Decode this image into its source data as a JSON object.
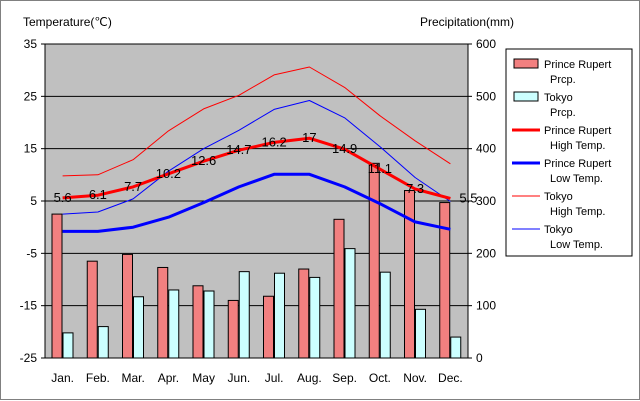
{
  "chart_data": {
    "type": "bar+line",
    "months": [
      "Jan.",
      "Feb.",
      "Mar.",
      "Apr.",
      "May",
      "Jun.",
      "Jul.",
      "Aug.",
      "Sep.",
      "Oct.",
      "Nov.",
      "Dec."
    ],
    "left_axis": {
      "title": "Temperature(℃)",
      "range": [
        -25,
        35
      ],
      "ticks": [
        "35",
        "25",
        "15",
        "5",
        "-5",
        "-15",
        "-25"
      ]
    },
    "right_axis": {
      "title": "Precipitation(mm)",
      "range": [
        0,
        600
      ],
      "ticks": [
        "600",
        "500",
        "400",
        "300",
        "200",
        "100",
        "0"
      ]
    },
    "precip_series": [
      {
        "name": "Prince Rupert Prcp.",
        "legend": [
          "Prince Rupert",
          "Prcp."
        ],
        "color": "#f28080",
        "values": [
          275,
          185,
          198,
          173,
          138,
          110,
          118,
          170,
          265,
          372,
          320,
          297
        ]
      },
      {
        "name": "Tokyo Prcp.",
        "legend": [
          "Tokyo",
          "Prcp."
        ],
        "color": "#ccffff",
        "values": [
          48,
          60,
          117,
          130,
          128,
          165,
          162,
          154,
          209,
          164,
          93,
          40
        ]
      }
    ],
    "temp_series": [
      {
        "name": "Prince Rupert High Temp.",
        "legend": [
          "Prince Rupert",
          "High Temp."
        ],
        "color": "#ff0000",
        "width": 3,
        "values": [
          5.6,
          6.1,
          7.7,
          10.2,
          12.6,
          14.7,
          16.2,
          17,
          14.9,
          11.1,
          7.3,
          5.5
        ],
        "labels": [
          "5.6",
          "6.1",
          "7.7",
          "10.2",
          "12.6",
          "14.7",
          "16.2",
          "17",
          "14.9",
          "11.1",
          "7.3",
          "5.5"
        ]
      },
      {
        "name": "Prince Rupert Low Temp.",
        "legend": [
          "Prince Rupert",
          "Low Temp."
        ],
        "color": "#0000ff",
        "width": 3,
        "values": [
          -0.8,
          -0.8,
          0,
          1.9,
          4.7,
          7.7,
          10.1,
          10.1,
          7.7,
          4.5,
          1,
          -0.4
        ]
      },
      {
        "name": "Tokyo High Temp.",
        "legend": [
          "Tokyo",
          "High Temp."
        ],
        "color": "#ff0000",
        "width": 1,
        "values": [
          9.8,
          10,
          12.9,
          18.4,
          22.6,
          25.2,
          29.1,
          30.6,
          26.7,
          21.3,
          16.5,
          12.1
        ]
      },
      {
        "name": "Tokyo Low Temp.",
        "legend": [
          "Tokyo",
          "Low Temp."
        ],
        "color": "#0000ff",
        "width": 1,
        "values": [
          2.5,
          2.9,
          5.4,
          10.7,
          15,
          18.5,
          22.5,
          24.2,
          20.9,
          15.4,
          9.5,
          4.9
        ]
      }
    ]
  }
}
